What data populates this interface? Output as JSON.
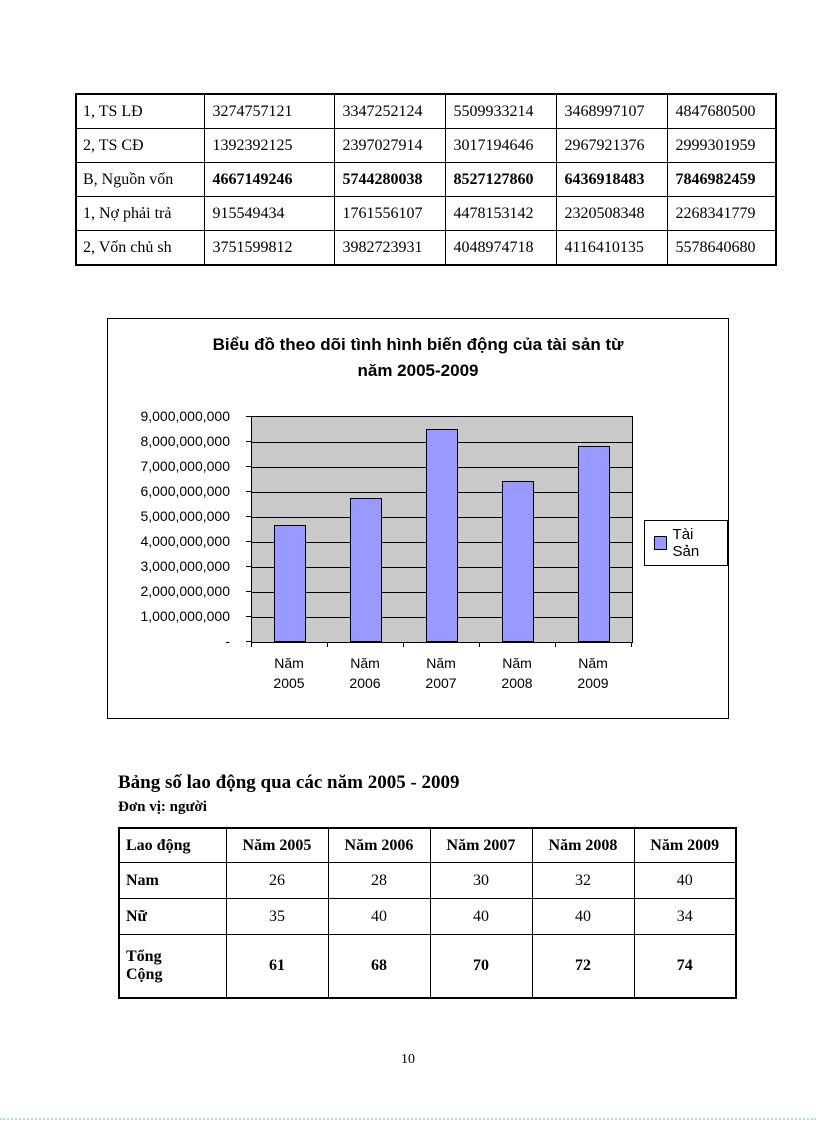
{
  "page": {
    "number": "10"
  },
  "finance_table": {
    "rows": [
      [
        "1, TS LĐ",
        "3274757121",
        "3347252124",
        "5509933214",
        "3468997107",
        "4847680500"
      ],
      [
        "2, TS CĐ",
        "1392392125",
        "2397027914",
        "3017194646",
        "2967921376",
        "2999301959"
      ],
      [
        "B, Nguồn vốn",
        "4667149246",
        "5744280038",
        "8527127860",
        "6436918483",
        "7846982459"
      ],
      [
        "1, Nợ phải trả",
        "915549434",
        "1761556107",
        "4478153142",
        "2320508348",
        "2268341779"
      ],
      [
        "2, Vốn chủ sh",
        "3751599812",
        "3982723931",
        "4048974718",
        "4116410135",
        "5578640680"
      ]
    ],
    "bold_value_row_index": 2
  },
  "chart_data": {
    "type": "bar",
    "title": "Biểu đồ theo dõi tình hình biến động của tài sản từ\nnăm 2005-2009",
    "categories": [
      "Năm 2005",
      "Năm 2006",
      "Năm 2007",
      "Năm 2008",
      "Năm 2009"
    ],
    "series": [
      {
        "name": "Tài Sản",
        "values": [
          4667149246,
          5744280038,
          8527127860,
          6436918483,
          7846982459
        ]
      }
    ],
    "xlabel": "",
    "ylabel": "",
    "ylim": [
      0,
      9000000000
    ],
    "y_ticks": [
      "9,000,000,000",
      "8,000,000,000",
      "7,000,000,000",
      "6,000,000,000",
      "5,000,000,000",
      "4,000,000,000",
      "3,000,000,000",
      "2,000,000,000",
      "1,000,000,000",
      "-"
    ],
    "grid": true,
    "legend_position": "right",
    "colors": {
      "bar": "#9999ff",
      "plot_bg": "#c9c9c9",
      "grid": "#000000"
    }
  },
  "labor_section": {
    "heading": "Bảng số lao động qua các năm 2005 - 2009",
    "unit": "Đơn vị: người",
    "table": {
      "headers": [
        "Lao động",
        "Năm 2005",
        "Năm 2006",
        "Năm 2007",
        "Năm 2008",
        "Năm 2009"
      ],
      "rows": [
        [
          "Nam",
          "26",
          "28",
          "30",
          "32",
          "40"
        ],
        [
          "Nữ",
          "35",
          "40",
          "40",
          "40",
          "34"
        ],
        [
          "Tổng\nCộng",
          "61",
          "68",
          "70",
          "72",
          "74"
        ]
      ]
    }
  }
}
